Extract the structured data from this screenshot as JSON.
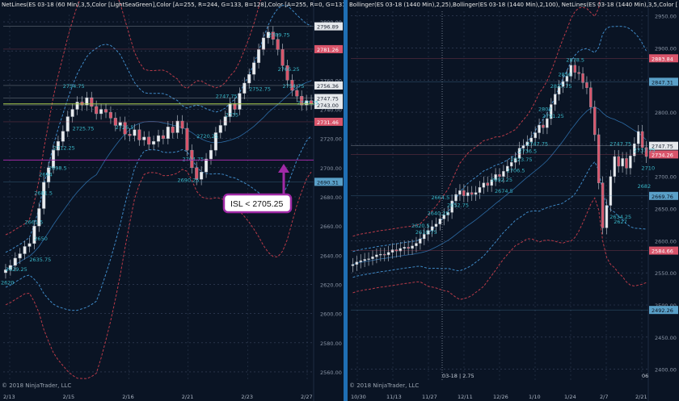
{
  "colors": {
    "up": "#e9ecef",
    "down": "#d9556b",
    "outline": "#9aa2ad",
    "band": "#3f89c6",
    "band_red": "#b83a48",
    "level_green": "#a6c94b",
    "accent": "#a02aa6",
    "price_box": "#e5e8ec",
    "label_cyan": "#3ec7d8",
    "label_white": "#dfe3e8"
  },
  "left": {
    "header": "NetLines(ES 03-18 (60 Min),3,5,Color [LightSeaGreen],Color [A=255, R=244, G=133, B=128],Color [A=255, R=0, G=131,",
    "copyright": "© 2018 NinjaTrader, LLC",
    "callout": "ISL < 2705.25",
    "chart_data": {
      "type": "candlestick",
      "x_tick_labels": [
        "2/13",
        "2/15",
        "2/16",
        "2/21",
        "2/23",
        "2/27"
      ],
      "ylim": [
        2555,
        2805
      ],
      "y_ticks": [
        2560,
        2580,
        2600,
        2620,
        2640,
        2660,
        2680,
        2700,
        2720,
        2740,
        2760,
        2780,
        2800
      ],
      "y_tick_labels": [
        "2560.00",
        "2580.00",
        "2600.00",
        "2620.00",
        "2640.00",
        "2660.00",
        "2680.00",
        "2700.00",
        "2720.00",
        "2740.00",
        "2760.00",
        "2780.00",
        "2800.00"
      ],
      "closes": [
        2630,
        2633,
        2638,
        2641,
        2646,
        2648,
        2660,
        2672,
        2690,
        2700,
        2712,
        2718,
        2725,
        2735,
        2740,
        2745,
        2743,
        2748,
        2742,
        2737,
        2740,
        2738,
        2734,
        2729,
        2731,
        2723,
        2722,
        2726,
        2719,
        2721,
        2716,
        2718,
        2722,
        2720,
        2728,
        2724,
        2732,
        2727,
        2712,
        2700,
        2692,
        2697,
        2706,
        2712,
        2724,
        2729,
        2735,
        2744,
        2740,
        2751,
        2758,
        2764,
        2772,
        2781,
        2789,
        2793,
        2788,
        2781,
        2770,
        2760,
        2753,
        2749,
        2743,
        2746,
        2744
      ],
      "levels": [
        {
          "value": 2796.89,
          "label": "2796.89",
          "box": "#e5e8ec",
          "text": "#1b2230"
        },
        {
          "value": 2781.26,
          "label": "2781.26",
          "box": "#d9556b",
          "text": "#ffffff"
        },
        {
          "value": 2756.36,
          "label": "2756.36",
          "box": "#e5e8ec",
          "text": "#1b2230"
        },
        {
          "value": 2747.75,
          "label": "2747.75",
          "box": "#e5e8ec",
          "text": "#1b2230"
        },
        {
          "value": 2743.0,
          "label": "2743.00",
          "box": "#e5e8ec",
          "text": "#1b2230"
        },
        {
          "value": 2731.46,
          "label": "2731.46",
          "box": "#d9556b",
          "text": "#ffffff"
        },
        {
          "value": 2690.31,
          "label": "2690.31",
          "box": "#5aa0c8",
          "text": "#0b1220"
        }
      ],
      "annotations": [
        {
          "i": 1,
          "v": 2629.25,
          "t": "2629.25"
        },
        {
          "i": 0,
          "v": 2620,
          "t": "2620"
        },
        {
          "i": 6,
          "v": 2635.75,
          "t": "2635.75"
        },
        {
          "i": 7,
          "v": 2650,
          "t": "2650"
        },
        {
          "i": 5,
          "v": 2661.5,
          "t": "2661.5"
        },
        {
          "i": 7,
          "v": 2681.5,
          "t": "2681.5"
        },
        {
          "i": 8,
          "v": 2694,
          "t": "2694"
        },
        {
          "i": 10,
          "v": 2698.5,
          "t": "2698.5"
        },
        {
          "i": 11,
          "v": 2712.25,
          "t": "2712.25"
        },
        {
          "i": 13,
          "v": 2754.75,
          "t": "2754.75"
        },
        {
          "i": 15,
          "v": 2725.75,
          "t": "2725.75"
        },
        {
          "i": 24,
          "v": 2726.5,
          "t": "2726.5"
        },
        {
          "i": 38,
          "v": 2704.75,
          "t": "2704.75"
        },
        {
          "i": 37,
          "v": 2690.25,
          "t": "2690.25"
        },
        {
          "i": 41,
          "v": 2720.25,
          "t": "2720.25"
        },
        {
          "i": 47,
          "v": 2735,
          "t": "2735"
        },
        {
          "i": 45,
          "v": 2747.75,
          "t": "2747.75"
        },
        {
          "i": 52,
          "v": 2752.75,
          "t": "2752.75"
        },
        {
          "i": 56,
          "v": 2789.75,
          "t": "2789.75"
        },
        {
          "i": 58,
          "v": 2766.25,
          "t": "2766.25"
        },
        {
          "i": 59,
          "v": 2754.75,
          "t": "2754.75"
        },
        {
          "i": 62,
          "v": 2743.25,
          "t": "2743.25"
        }
      ]
    }
  },
  "right": {
    "header": "Bollinger(ES 03-18 (1440 Min),2,25),Bollinger(ES 03-18 (1440 Min),2,100), NetLines(ES 03-18 (1440 Min),3,5,Color [",
    "copyright": "© 2018 NinjaTrader, LLC",
    "crosshair_label": "03-18 | 2.75",
    "edge_label": "06",
    "chart_data": {
      "type": "candlestick",
      "x_tick_labels": [
        "10/30",
        "11/13",
        "11/27",
        "12/11",
        "12/26",
        "1/10",
        "1/24",
        "2/7",
        "2/21"
      ],
      "ylim": [
        2382,
        2957
      ],
      "y_ticks": [
        2400,
        2450,
        2500,
        2550,
        2600,
        2650,
        2700,
        2750,
        2800,
        2850,
        2900,
        2950
      ],
      "y_tick_labels": [
        "2400.00",
        "2450.00",
        "2500.00",
        "2550.00",
        "2600.00",
        "2650.00",
        "2700.00",
        "2750.00",
        "2800.00",
        "2850.00",
        "2900.00",
        "2950.00"
      ],
      "closes": [
        2563,
        2567,
        2569,
        2571,
        2572,
        2575,
        2578,
        2579,
        2578,
        2582,
        2586,
        2584,
        2588,
        2590,
        2588,
        2592,
        2596,
        2603,
        2610,
        2616,
        2622,
        2626,
        2634,
        2640,
        2644,
        2662,
        2672,
        2678,
        2670,
        2675,
        2672,
        2675,
        2683,
        2690,
        2686,
        2695,
        2703,
        2700,
        2708,
        2716,
        2722,
        2728,
        2744,
        2748,
        2754,
        2760,
        2768,
        2780,
        2776,
        2790,
        2812,
        2828,
        2840,
        2848,
        2856,
        2873,
        2862,
        2860,
        2846,
        2838,
        2808,
        2765,
        2690,
        2620,
        2655,
        2700,
        2731,
        2716,
        2728,
        2713,
        2732,
        2751,
        2770,
        2745,
        2731
      ],
      "levels": [
        {
          "value": 2883.84,
          "label": "2883.84",
          "box": "#d9556b",
          "text": "#ffffff"
        },
        {
          "value": 2847.31,
          "label": "2847.31",
          "box": "#5aa0c8",
          "text": "#0b1220"
        },
        {
          "value": 2747.75,
          "label": "2747.75",
          "box": "#e5e8ec",
          "text": "#1b2230"
        },
        {
          "value": 2734.26,
          "label": "2734.26",
          "box": "#d9556b",
          "text": "#ffffff"
        },
        {
          "value": 2669.76,
          "label": "2669.76",
          "box": "#5aa0c8",
          "text": "#0b1220"
        },
        {
          "value": 2584.66,
          "label": "2584.66",
          "box": "#d9556b",
          "text": "#ffffff"
        },
        {
          "value": 2492.26,
          "label": "2492.26",
          "box": "#5aa0c8",
          "text": "#0b1220"
        }
      ],
      "annotations": [
        {
          "i": 55,
          "v": 2878.5,
          "t": "2878.5"
        },
        {
          "i": 53,
          "v": 2856,
          "t": "2856"
        },
        {
          "i": 51,
          "v": 2837.75,
          "t": "2837.75"
        },
        {
          "i": 48,
          "v": 2802,
          "t": "2802"
        },
        {
          "i": 49,
          "v": 2791.25,
          "t": "2791.25"
        },
        {
          "i": 45,
          "v": 2747.75,
          "t": "2747.75"
        },
        {
          "i": 43,
          "v": 2736.5,
          "t": "2736.5"
        },
        {
          "i": 41,
          "v": 2723.75,
          "t": "2723.75"
        },
        {
          "i": 40,
          "v": 2706.5,
          "t": "2706.5"
        },
        {
          "i": 36,
          "v": 2692.25,
          "t": "2692.25"
        },
        {
          "i": 37,
          "v": 2674.5,
          "t": "2674.5"
        },
        {
          "i": 21,
          "v": 2664.5,
          "t": "2664.5"
        },
        {
          "i": 25,
          "v": 2652.75,
          "t": "2652.75"
        },
        {
          "i": 20,
          "v": 2640.25,
          "t": "2640.25"
        },
        {
          "i": 16,
          "v": 2620.5,
          "t": "2620.5"
        },
        {
          "i": 17,
          "v": 2610.75,
          "t": "2610.75"
        },
        {
          "i": 66,
          "v": 2747.75,
          "t": "2747.75"
        },
        {
          "i": 72,
          "v": 2737.75,
          "t": "2737.75"
        },
        {
          "i": 74,
          "v": 2710,
          "t": "2710"
        },
        {
          "i": 73,
          "v": 2682,
          "t": "2682"
        },
        {
          "i": 66,
          "v": 2634.25,
          "t": "2634.25"
        },
        {
          "i": 67,
          "v": 2627,
          "t": "2627"
        }
      ]
    }
  }
}
